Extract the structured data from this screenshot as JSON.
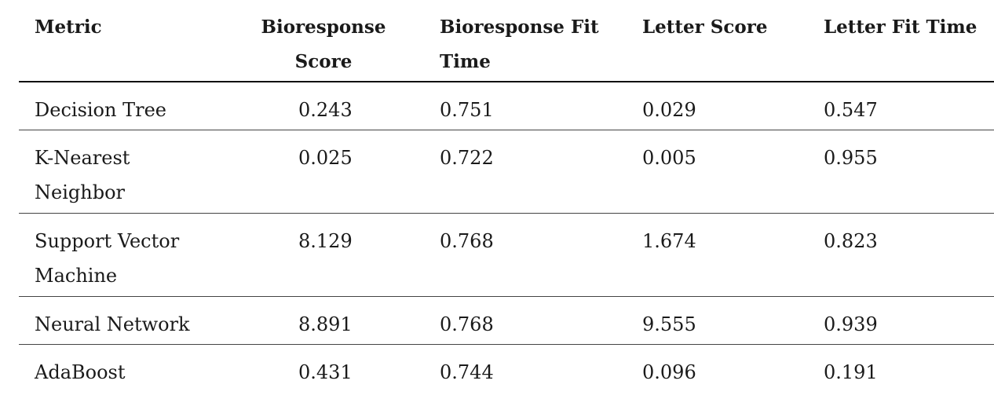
{
  "table": {
    "headers": [
      "Metric",
      "Bioresponse Score",
      "Bioresponse Fit Time",
      "Letter Score",
      "Letter Fit Time"
    ],
    "rows": [
      [
        "Decision Tree",
        "0.243",
        "0.751",
        "0.029",
        "0.547"
      ],
      [
        "K-Nearest Neighbor",
        "0.025",
        "0.722",
        "0.005",
        "0.955"
      ],
      [
        "Support Vector Machine",
        "8.129",
        "0.768",
        "1.674",
        "0.823"
      ],
      [
        "Neural Network",
        "8.891",
        "0.768",
        "9.555",
        "0.939"
      ],
      [
        "AdaBoost",
        "0.431",
        "0.744",
        "0.096",
        "0.191"
      ]
    ]
  }
}
